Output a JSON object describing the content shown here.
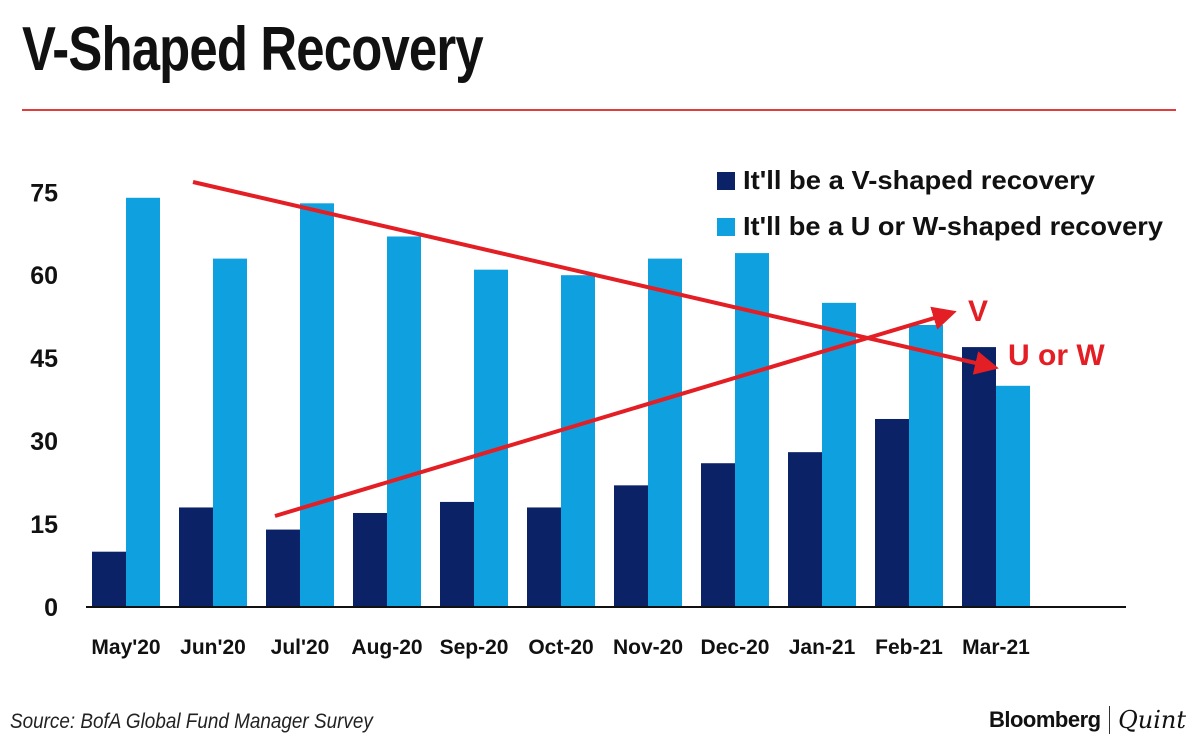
{
  "title": "V-Shaped Recovery",
  "source": "Source: BofA Global Fund Manager Survey",
  "brand": {
    "primary": "Bloomberg",
    "secondary": "Quint"
  },
  "colors": {
    "v_series": "#0b2266",
    "uw_series": "#0fa0df",
    "accent": "#e31e24"
  },
  "chart_data": {
    "type": "bar",
    "title": "V-Shaped Recovery",
    "categories": [
      "May'20",
      "Jun'20",
      "Jul'20",
      "Aug-20",
      "Sep-20",
      "Oct-20",
      "Nov-20",
      "Dec-20",
      "Jan-21",
      "Feb-21",
      "Mar-21"
    ],
    "series": [
      {
        "name": "It'll be a V-shaped recovery",
        "values": [
          10,
          18,
          14,
          17,
          19,
          18,
          22,
          26,
          28,
          34,
          47
        ]
      },
      {
        "name": "It'll be a U or W-shaped recovery",
        "values": [
          74,
          63,
          73,
          67,
          61,
          60,
          63,
          64,
          55,
          51,
          40
        ]
      }
    ],
    "y_ticks": [
      0,
      15,
      30,
      45,
      60,
      75
    ],
    "ylim": [
      0,
      80
    ],
    "xlabel": "",
    "ylabel": "",
    "legend": "top-right",
    "annotations": {
      "v_label": "V",
      "uw_label": "U or W"
    }
  }
}
